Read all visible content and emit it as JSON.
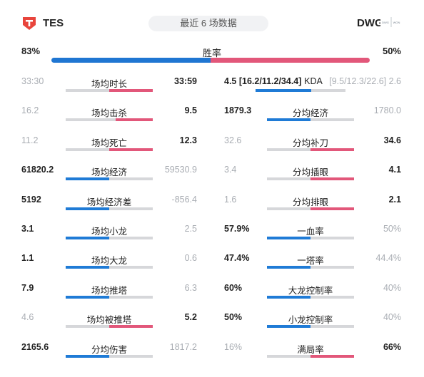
{
  "header": {
    "left_team": "TES",
    "right_team": "DWG",
    "recent_label": "最近 6 场数据",
    "dwg_logo_text": "DWG|WON"
  },
  "colors": {
    "tes": "#1f7bd6",
    "dwg": "#e2577a",
    "track": "#d6d7da"
  },
  "winrate": {
    "label": "胜率",
    "left": "83%",
    "right": "50%",
    "left_fraction": 0.5
  },
  "stats_left": [
    {
      "label": "场均时长",
      "left": "33:30",
      "right": "33:59",
      "winner": "right",
      "fill": 1.0
    },
    {
      "label": "场均击杀",
      "left": "16.2",
      "right": "9.5",
      "winner": "right",
      "fill": 0.86
    },
    {
      "label": "场均死亡",
      "left": "11.2",
      "right": "12.3",
      "winner": "right",
      "fill": 1.0
    },
    {
      "label": "场均经济",
      "left": "61820.2",
      "right": "59530.9",
      "winner": "left",
      "fill": 1.0
    },
    {
      "label": "场均经济差",
      "left": "5192",
      "right": "-856.4",
      "winner": "left",
      "fill": 1.0
    },
    {
      "label": "场均小龙",
      "left": "3.1",
      "right": "2.5",
      "winner": "left",
      "fill": 1.0
    },
    {
      "label": "场均大龙",
      "left": "1.1",
      "right": "0.6",
      "winner": "left",
      "fill": 1.0
    },
    {
      "label": "场均推塔",
      "left": "7.9",
      "right": "6.3",
      "winner": "left",
      "fill": 1.0
    },
    {
      "label": "场均被推塔",
      "left": "4.6",
      "right": "5.2",
      "winner": "right",
      "fill": 1.0
    },
    {
      "label": "分均伤害",
      "left": "2165.6",
      "right": "1817.2",
      "winner": "left",
      "fill": 1.0
    }
  ],
  "stats_right": [
    {
      "label": "KDA",
      "left": "4.5 [16.2/11.2/34.4]",
      "right": "[9.5/12.3/22.6] 2.6",
      "winner": "left",
      "fill": 1.0
    },
    {
      "label": "分均经济",
      "left": "1879.3",
      "right": "1780.0",
      "winner": "left",
      "fill": 1.0
    },
    {
      "label": "分均补刀",
      "left": "32.6",
      "right": "34.6",
      "winner": "right",
      "fill": 1.0
    },
    {
      "label": "分均插眼",
      "left": "3.4",
      "right": "4.1",
      "winner": "right",
      "fill": 1.0
    },
    {
      "label": "分均排眼",
      "left": "1.6",
      "right": "2.1",
      "winner": "right",
      "fill": 1.0
    },
    {
      "label": "一血率",
      "left": "57.9%",
      "right": "50%",
      "winner": "left",
      "fill": 1.0
    },
    {
      "label": "一塔率",
      "left": "47.4%",
      "right": "44.4%",
      "winner": "left",
      "fill": 1.0
    },
    {
      "label": "大龙控制率",
      "left": "60%",
      "right": "40%",
      "winner": "left",
      "fill": 1.0
    },
    {
      "label": "小龙控制率",
      "left": "50%",
      "right": "40%",
      "winner": "left",
      "fill": 1.0
    },
    {
      "label": "满局率",
      "left": "16%",
      "right": "66%",
      "winner": "right",
      "fill": 1.0
    }
  ]
}
